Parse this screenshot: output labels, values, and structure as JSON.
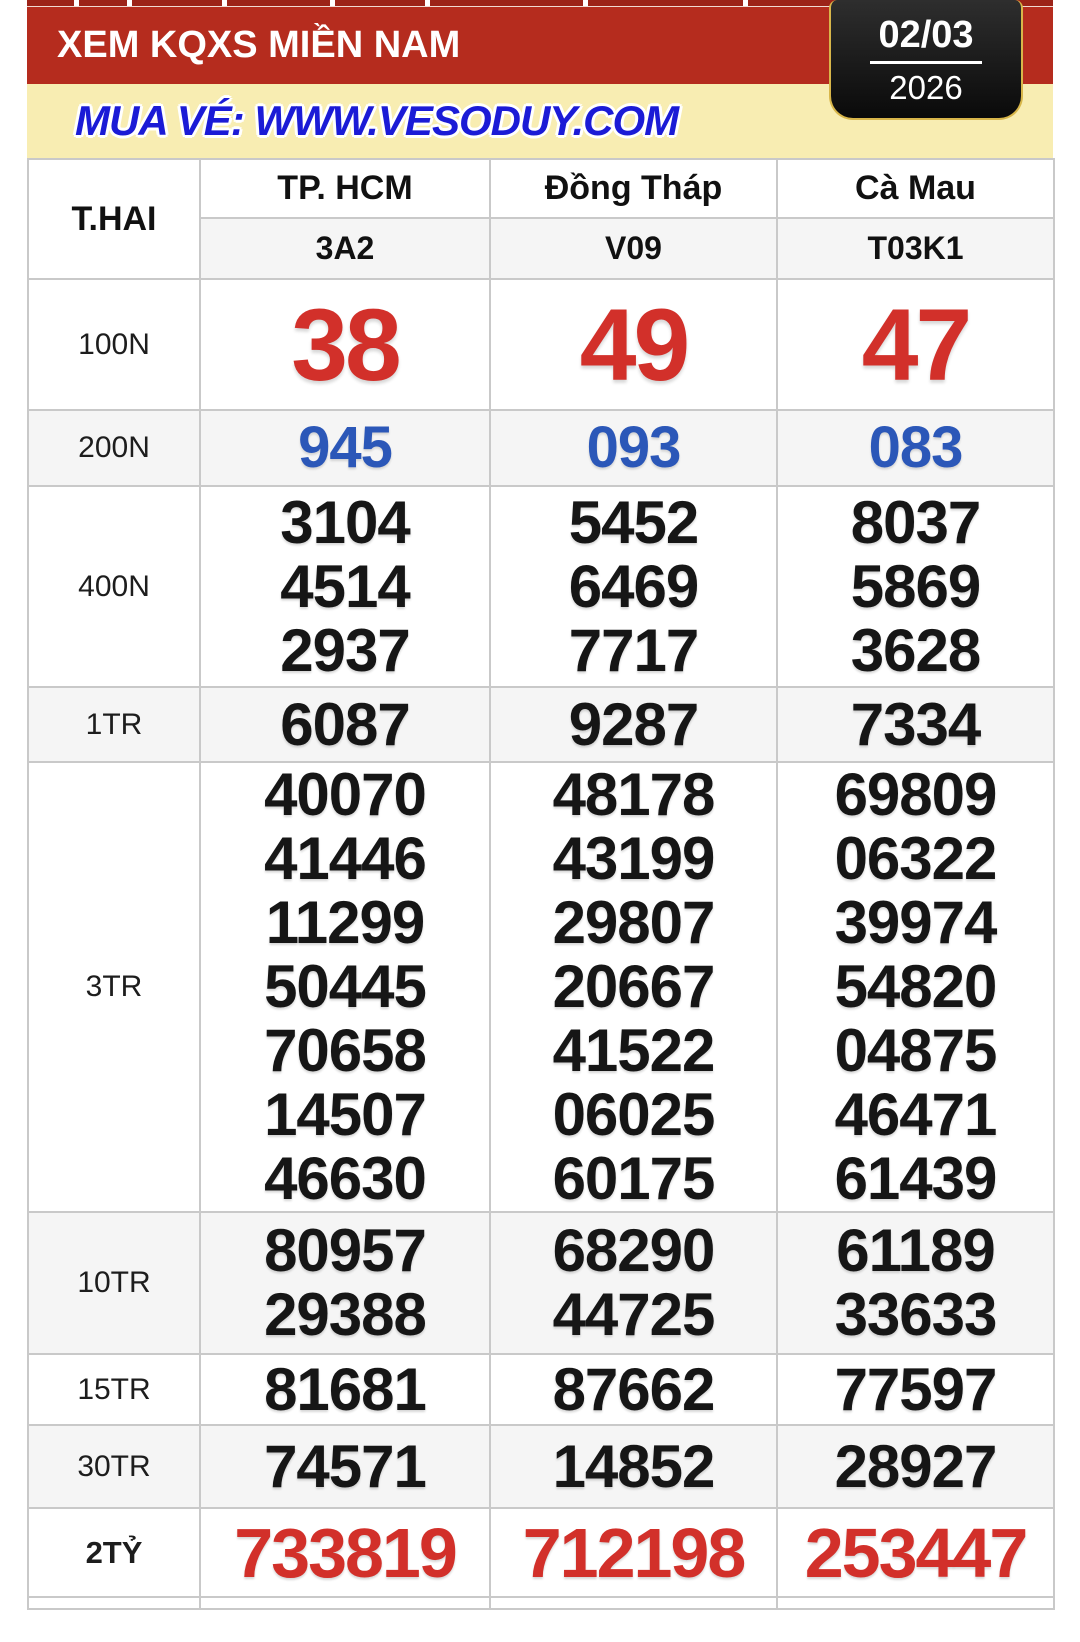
{
  "header": {
    "title": "XEM KQXS MIỀN NAM",
    "date_day_month": "02/03",
    "date_year": "2026"
  },
  "promo": {
    "text": "MUA VÉ: WWW.VESODUY.COM"
  },
  "table": {
    "day_label": "T.HAI",
    "provinces": [
      "TP. HCM",
      "Đồng Tháp",
      "Cà Mau"
    ],
    "codes": [
      "3A2",
      "V09",
      "T03K1"
    ],
    "rows": [
      {
        "label": "100N",
        "cells": [
          [
            "38"
          ],
          [
            "49"
          ],
          [
            "47"
          ]
        ]
      },
      {
        "label": "200N",
        "cells": [
          [
            "945"
          ],
          [
            "093"
          ],
          [
            "083"
          ]
        ]
      },
      {
        "label": "400N",
        "cells": [
          [
            "3104",
            "4514",
            "2937"
          ],
          [
            "5452",
            "6469",
            "7717"
          ],
          [
            "8037",
            "5869",
            "3628"
          ]
        ]
      },
      {
        "label": "1TR",
        "cells": [
          [
            "6087"
          ],
          [
            "9287"
          ],
          [
            "7334"
          ]
        ]
      },
      {
        "label": "3TR",
        "cells": [
          [
            "40070",
            "41446",
            "11299",
            "50445",
            "70658",
            "14507",
            "46630"
          ],
          [
            "48178",
            "43199",
            "29807",
            "20667",
            "41522",
            "06025",
            "60175"
          ],
          [
            "69809",
            "06322",
            "39974",
            "54820",
            "04875",
            "46471",
            "61439"
          ]
        ]
      },
      {
        "label": "10TR",
        "cells": [
          [
            "80957",
            "29388"
          ],
          [
            "68290",
            "44725"
          ],
          [
            "61189",
            "33633"
          ]
        ]
      },
      {
        "label": "15TR",
        "cells": [
          [
            "81681"
          ],
          [
            "87662"
          ],
          [
            "77597"
          ]
        ]
      },
      {
        "label": "30TR",
        "cells": [
          [
            "74571"
          ],
          [
            "14852"
          ],
          [
            "28927"
          ]
        ]
      },
      {
        "label": "2TỶ",
        "cells": [
          [
            "733819"
          ],
          [
            "712198"
          ],
          [
            "253447"
          ]
        ]
      }
    ]
  },
  "colors": {
    "red_bar": "#b52c1e",
    "tab_red": "#9c2318",
    "yellow_bar": "#f8edb2",
    "url_blue": "#1b1bd6",
    "num_red": "#d2302a",
    "num_blue": "#2b57b8",
    "num_black": "#161616",
    "border_gray": "#c9c9c9",
    "row_gray": "#f5f5f5",
    "gold": "#d8b64a",
    "box_black": "#141414"
  }
}
